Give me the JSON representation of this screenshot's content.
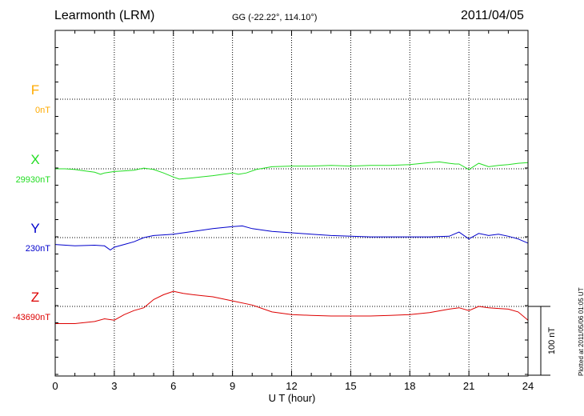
{
  "header": {
    "station": "Learmonth (LRM)",
    "coords": "GG (-22.22°, 114.10°)",
    "date": "2011/04/05"
  },
  "footer": {
    "plotted": "Plotted at 2011/05/06 01:05 UT"
  },
  "colors": {
    "F": "#ffaa00",
    "X": "#22dd22",
    "Y": "#0000cc",
    "Z": "#dd0000"
  },
  "chart_data": {
    "type": "line",
    "xlabel": "U T (hour)",
    "xlim": [
      0,
      24
    ],
    "xticks": [
      0,
      3,
      6,
      9,
      12,
      15,
      18,
      21,
      24
    ],
    "scale_label": "100 nT",
    "scale_nT": 100,
    "series": [
      {
        "name": "F",
        "baseline_label": "0nT",
        "values": []
      },
      {
        "name": "X",
        "baseline_label": "29930nT",
        "x": [
          0,
          0.5,
          1,
          1.5,
          2,
          2.3,
          2.5,
          3,
          3.5,
          4,
          4.5,
          5,
          5.5,
          6,
          6.3,
          7,
          8,
          9,
          9.3,
          9.7,
          10.2,
          11,
          12,
          13,
          14,
          15,
          16,
          17,
          18,
          19,
          19.5,
          20,
          20.3,
          20.5,
          21,
          21.5,
          22,
          22.5,
          23,
          23.5,
          24
        ],
        "values": [
          0,
          0,
          -1,
          -3,
          -5,
          -8,
          -6,
          -4,
          -3,
          -2,
          1,
          -1,
          -6,
          -12,
          -15,
          -13,
          -10,
          -6,
          -8,
          -6,
          -1,
          3,
          4,
          4,
          5,
          4,
          5,
          5,
          6,
          9,
          10,
          8,
          7,
          7,
          -1,
          8,
          3,
          5,
          6,
          8,
          9
        ]
      },
      {
        "name": "Y",
        "baseline_label": "230nT",
        "x": [
          0,
          1,
          2,
          2.5,
          2.8,
          3,
          3.5,
          4,
          4.5,
          5,
          5.5,
          6,
          7,
          8,
          9,
          9.5,
          10,
          11,
          12,
          13,
          14,
          15,
          16,
          17,
          18,
          19,
          20,
          20.5,
          21,
          21.5,
          22,
          22.5,
          23,
          23.5,
          24
        ],
        "values": [
          -10,
          -12,
          -11,
          -12,
          -18,
          -14,
          -10,
          -6,
          0,
          3,
          4,
          5,
          9,
          13,
          16,
          17,
          13,
          9,
          7,
          5,
          3,
          2,
          1,
          1,
          1,
          1,
          2,
          8,
          -2,
          6,
          3,
          5,
          2,
          -2,
          -8
        ]
      },
      {
        "name": "Z",
        "baseline_label": "-43690nT",
        "x": [
          0,
          1,
          2,
          2.5,
          3,
          3.5,
          4,
          4.5,
          5,
          5.5,
          6,
          6.5,
          7,
          8,
          9,
          10,
          11,
          12,
          13,
          14,
          15,
          16,
          17,
          18,
          19,
          20,
          20.5,
          21,
          21.5,
          22,
          22.5,
          23,
          23.5,
          24
        ],
        "values": [
          -25,
          -25,
          -22,
          -18,
          -20,
          -12,
          -6,
          -2,
          10,
          17,
          22,
          19,
          17,
          14,
          8,
          2,
          -8,
          -12,
          -13,
          -14,
          -14,
          -14,
          -13,
          -12,
          -9,
          -4,
          -2,
          -6,
          0,
          -2,
          -3,
          -4,
          -8,
          -20
        ]
      }
    ]
  }
}
